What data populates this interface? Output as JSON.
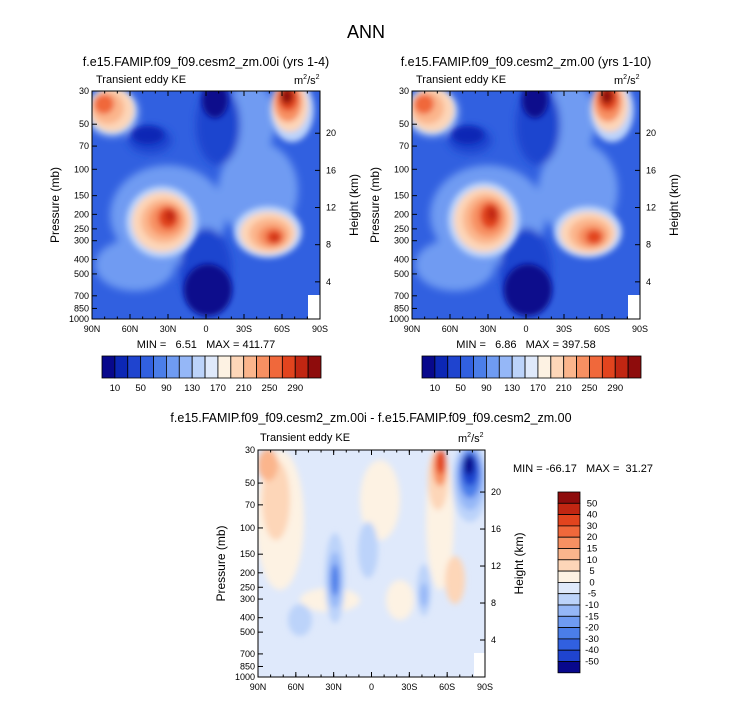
{
  "figure": {
    "title": "ANN"
  },
  "chart_data": [
    {
      "type": "heatmap",
      "title": "f.e15.FAMIP.f09_f09.cesm2_zm.00i (yrs 1-4)",
      "left_label": "Transient eddy KE",
      "units_base": "m",
      "units_exp1": "2",
      "units_mid": "/s",
      "units_exp2": "2",
      "xlabel": "",
      "ylabel": "Pressure (mb)",
      "y2label": "Height (km)",
      "x_ticks": [
        "90N",
        "60N",
        "30N",
        "0",
        "30S",
        "60S",
        "90S"
      ],
      "y_ticks": [
        "30",
        "50",
        "70",
        "100",
        "150",
        "200",
        "250",
        "300",
        "400",
        "500",
        "700",
        "850",
        "1000"
      ],
      "y2_ticks": [
        "20",
        "16",
        "12",
        "8",
        "4"
      ],
      "min_text": "MIN =   6.51   MAX = 411.77",
      "min": 6.51,
      "max": 411.77,
      "colorbar_labels": [
        "10",
        "50",
        "90",
        "130",
        "170",
        "210",
        "250",
        "290"
      ],
      "colors": [
        "#08088c",
        "#0c27b5",
        "#1f44cf",
        "#3160e0",
        "#4b7ee9",
        "#6f9bf2",
        "#95b7f7",
        "#bcd3fa",
        "#dfe9fb",
        "#fdf2e3",
        "#fdd6b8",
        "#fbb58c",
        "#f79062",
        "#f0683b",
        "#e2441e",
        "#c12612",
        "#8e0c0c"
      ]
    },
    {
      "type": "heatmap",
      "title": "f.e15.FAMIP.f09_f09.cesm2_zm.00 (yrs 1-10)",
      "left_label": "Transient eddy KE",
      "units_base": "m",
      "units_exp1": "2",
      "units_mid": "/s",
      "units_exp2": "2",
      "xlabel": "",
      "ylabel": "Pressure (mb)",
      "y2label": "Height (km)",
      "x_ticks": [
        "90N",
        "60N",
        "30N",
        "0",
        "30S",
        "60S",
        "90S"
      ],
      "y_ticks": [
        "30",
        "50",
        "70",
        "100",
        "150",
        "200",
        "250",
        "300",
        "400",
        "500",
        "700",
        "850",
        "1000"
      ],
      "y2_ticks": [
        "20",
        "16",
        "12",
        "8",
        "4"
      ],
      "min_text": "MIN =   6.86   MAX = 397.58",
      "min": 6.86,
      "max": 397.58,
      "colorbar_labels": [
        "10",
        "50",
        "90",
        "130",
        "170",
        "210",
        "250",
        "290"
      ],
      "colors": [
        "#08088c",
        "#0c27b5",
        "#1f44cf",
        "#3160e0",
        "#4b7ee9",
        "#6f9bf2",
        "#95b7f7",
        "#bcd3fa",
        "#dfe9fb",
        "#fdf2e3",
        "#fdd6b8",
        "#fbb58c",
        "#f79062",
        "#f0683b",
        "#e2441e",
        "#c12612",
        "#8e0c0c"
      ]
    },
    {
      "type": "heatmap",
      "title": "f.e15.FAMIP.f09_f09.cesm2_zm.00i - f.e15.FAMIP.f09_f09.cesm2_zm.00",
      "left_label": "Transient eddy KE",
      "units_base": "m",
      "units_exp1": "2",
      "units_mid": "/s",
      "units_exp2": "2",
      "xlabel": "",
      "ylabel": "Pressure (mb)",
      "y2label": "Height (km)",
      "x_ticks": [
        "90N",
        "60N",
        "30N",
        "0",
        "30S",
        "60S",
        "90S"
      ],
      "y_ticks": [
        "30",
        "50",
        "70",
        "100",
        "150",
        "200",
        "250",
        "300",
        "400",
        "500",
        "700",
        "850",
        "1000"
      ],
      "y2_ticks": [
        "20",
        "16",
        "12",
        "8",
        "4"
      ],
      "min_text": "MIN = -66.17   MAX =  31.27",
      "min": -66.17,
      "max": 31.27,
      "colorbar_labels": [
        "50",
        "40",
        "30",
        "20",
        "15",
        "10",
        "5",
        "0",
        "-5",
        "-10",
        "-15",
        "-20",
        "-30",
        "-40",
        "-50"
      ],
      "colors": [
        "#8e0c0c",
        "#c12612",
        "#e2441e",
        "#f0683b",
        "#f79062",
        "#fbb58c",
        "#fdd6b8",
        "#fdf2e3",
        "#dfe9fb",
        "#bcd3fa",
        "#95b7f7",
        "#6f9bf2",
        "#4b7ee9",
        "#3160e0",
        "#1f44cf",
        "#08088c"
      ]
    }
  ]
}
